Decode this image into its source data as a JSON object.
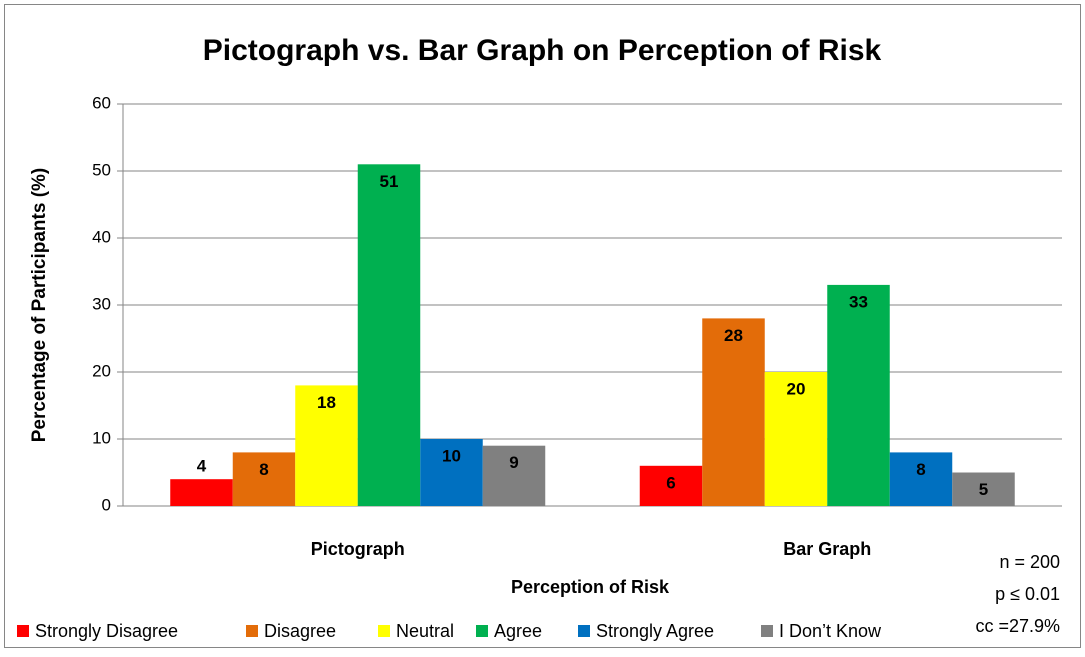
{
  "chart_data": {
    "type": "bar",
    "title": "Pictograph vs. Bar Graph on Perception of Risk",
    "x_label": "Perception of Risk",
    "y_label": "Percentage of Participants (%)",
    "categories": [
      "Pictograph",
      "Bar Graph"
    ],
    "series": [
      {
        "name": "Strongly Disagree",
        "color": "#ff0000",
        "values": [
          4,
          6
        ]
      },
      {
        "name": "Disagree",
        "color": "#e36c09",
        "values": [
          8,
          28
        ]
      },
      {
        "name": "Neutral",
        "color": "#ffff00",
        "values": [
          18,
          20
        ]
      },
      {
        "name": "Agree",
        "color": "#00b050",
        "values": [
          51,
          33
        ]
      },
      {
        "name": "Strongly Agree",
        "color": "#0070c0",
        "values": [
          10,
          8
        ]
      },
      {
        "name": "I Don’t Know",
        "color": "#808080",
        "values": [
          9,
          5
        ]
      }
    ],
    "ylim": [
      0,
      60
    ],
    "yticks": [
      0,
      10,
      20,
      30,
      40,
      50,
      60
    ],
    "grid": true,
    "legend": "bottom",
    "annotations": [
      "n = 200",
      "p ≤ 0.01",
      "cc =27.9%"
    ]
  }
}
